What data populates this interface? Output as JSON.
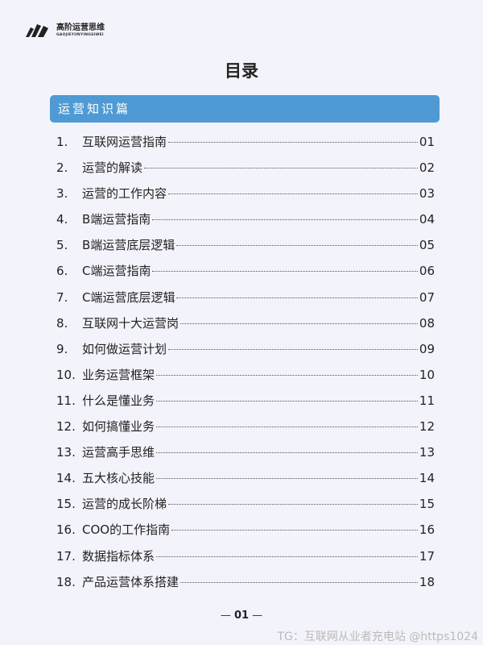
{
  "logo": {
    "name": "高阶运营思维",
    "subtitle": "GAOJIEYUNYINGSIWEI"
  },
  "title": "目录",
  "section": "运营知识篇",
  "toc": [
    {
      "n": "1.",
      "label": "互联网运营指南",
      "page": "01"
    },
    {
      "n": "2.",
      "label": "运营的解读",
      "page": "02"
    },
    {
      "n": "3.",
      "label": "运营的工作内容",
      "page": "03"
    },
    {
      "n": "4.",
      "label": "B端运营指南",
      "page": "04"
    },
    {
      "n": "5.",
      "label": "B端运营底层逻辑",
      "page": "05"
    },
    {
      "n": "6.",
      "label": "C端运营指南",
      "page": "06"
    },
    {
      "n": "7.",
      "label": "C端运营底层逻辑",
      "page": "07"
    },
    {
      "n": "8.",
      "label": "互联网十大运营岗",
      "page": "08"
    },
    {
      "n": "9.",
      "label": "如何做运营计划",
      "page": "09"
    },
    {
      "n": "10.",
      "label": "业务运营框架",
      "page": "10"
    },
    {
      "n": "11.",
      "label": "什么是懂业务",
      "page": "11"
    },
    {
      "n": "12.",
      "label": "如何搞懂业务",
      "page": "12"
    },
    {
      "n": "13.",
      "label": "运营高手思维",
      "page": "13"
    },
    {
      "n": "14.",
      "label": "五大核心技能",
      "page": "14"
    },
    {
      "n": "15.",
      "label": "运营的成长阶梯",
      "page": "15"
    },
    {
      "n": "16.",
      "label": "COO的工作指南",
      "page": "16"
    },
    {
      "n": "17.",
      "label": "数据指标体系",
      "page": "17"
    },
    {
      "n": "18.",
      "label": "产品运营体系搭建",
      "page": "18"
    }
  ],
  "footer": {
    "page": "01",
    "watermark": "TG：互联网从业者充电站 @https1024"
  }
}
